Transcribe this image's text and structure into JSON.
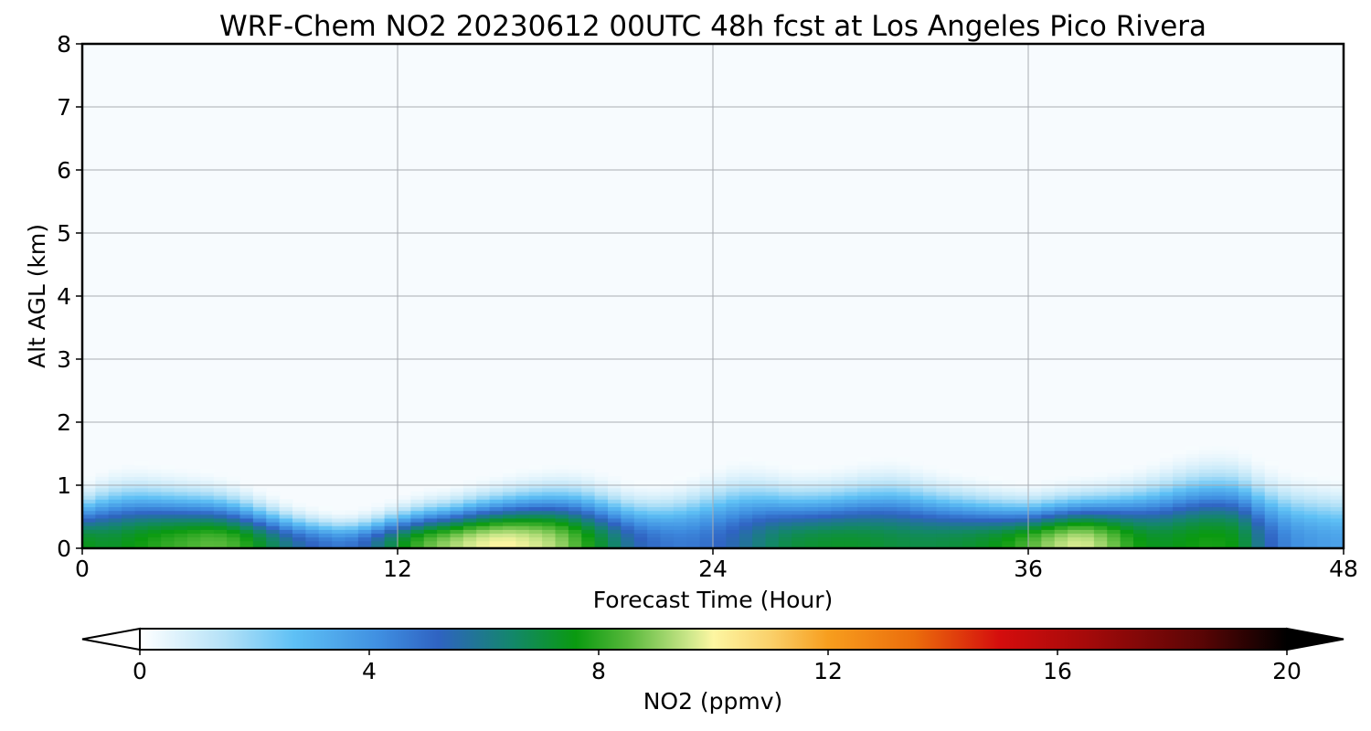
{
  "chart_data": {
    "type": "heatmap",
    "title": "WRF-Chem NO2  20230612 00UTC 48h fcst at Los Angeles Pico Rivera",
    "xlabel": "Forecast Time (Hour)",
    "ylabel": "Alt AGL (km)",
    "xlim": [
      0,
      48
    ],
    "ylim": [
      0,
      8
    ],
    "x_ticks": [
      0,
      12,
      24,
      36,
      48
    ],
    "y_ticks": [
      0,
      1,
      2,
      3,
      4,
      5,
      6,
      7,
      8
    ],
    "grid": true,
    "colorbar": {
      "label": "NO2  (ppmv)",
      "range": [
        0,
        20
      ],
      "ticks": [
        0,
        4,
        8,
        12,
        16,
        20
      ],
      "extend": "both",
      "placement": "bottom",
      "stops": [
        {
          "v": 0,
          "c": "#ffffff"
        },
        {
          "v": 1.5,
          "c": "#b3e1f7"
        },
        {
          "v": 2.7,
          "c": "#5ec0f5"
        },
        {
          "v": 4.2,
          "c": "#3f8ee0"
        },
        {
          "v": 5.2,
          "c": "#2f63c2"
        },
        {
          "v": 6.5,
          "c": "#13876a"
        },
        {
          "v": 7.6,
          "c": "#0a9a10"
        },
        {
          "v": 8.5,
          "c": "#56b83a"
        },
        {
          "v": 9.6,
          "c": "#cfe88c"
        },
        {
          "v": 10.0,
          "c": "#fdf6a2"
        },
        {
          "v": 11.0,
          "c": "#fad06a"
        },
        {
          "v": 12.0,
          "c": "#f79e1e"
        },
        {
          "v": 13.5,
          "c": "#eb6d0c"
        },
        {
          "v": 15.0,
          "c": "#d40d0d"
        },
        {
          "v": 16.5,
          "c": "#a50a0a"
        },
        {
          "v": 18.5,
          "c": "#5a0505"
        },
        {
          "v": 20,
          "c": "#000000"
        }
      ]
    },
    "profile": {
      "hours": [
        0,
        1,
        2,
        3,
        4,
        5,
        6,
        7,
        8,
        9,
        10,
        11,
        12,
        13,
        14,
        15,
        16,
        17,
        18,
        19,
        20,
        21,
        22,
        23,
        24,
        25,
        26,
        27,
        28,
        29,
        30,
        31,
        32,
        33,
        34,
        35,
        36,
        37,
        38,
        39,
        40,
        41,
        42,
        43,
        44,
        45,
        46,
        47,
        48
      ],
      "surface_ppmv": [
        7.5,
        7.2,
        7.6,
        8.0,
        8.3,
        8.6,
        8.2,
        7.0,
        5.8,
        5.0,
        4.6,
        5.6,
        7.2,
        8.5,
        9.2,
        9.8,
        10.1,
        9.8,
        9.3,
        8.2,
        6.8,
        5.5,
        4.8,
        4.6,
        5.0,
        5.6,
        6.4,
        7.0,
        7.2,
        7.3,
        7.2,
        7.0,
        6.9,
        7.0,
        7.2,
        7.6,
        8.4,
        9.3,
        9.8,
        9.0,
        7.8,
        7.3,
        7.6,
        7.8,
        7.5,
        5.5,
        4.2,
        3.8,
        3.6
      ],
      "scale_height_km": [
        0.42,
        0.5,
        0.52,
        0.5,
        0.48,
        0.46,
        0.42,
        0.36,
        0.3,
        0.26,
        0.24,
        0.27,
        0.32,
        0.36,
        0.38,
        0.42,
        0.45,
        0.48,
        0.5,
        0.5,
        0.46,
        0.42,
        0.42,
        0.46,
        0.52,
        0.56,
        0.54,
        0.5,
        0.5,
        0.52,
        0.55,
        0.56,
        0.52,
        0.48,
        0.45,
        0.42,
        0.4,
        0.42,
        0.44,
        0.46,
        0.5,
        0.55,
        0.6,
        0.63,
        0.62,
        0.55,
        0.5,
        0.48,
        0.46
      ]
    }
  }
}
